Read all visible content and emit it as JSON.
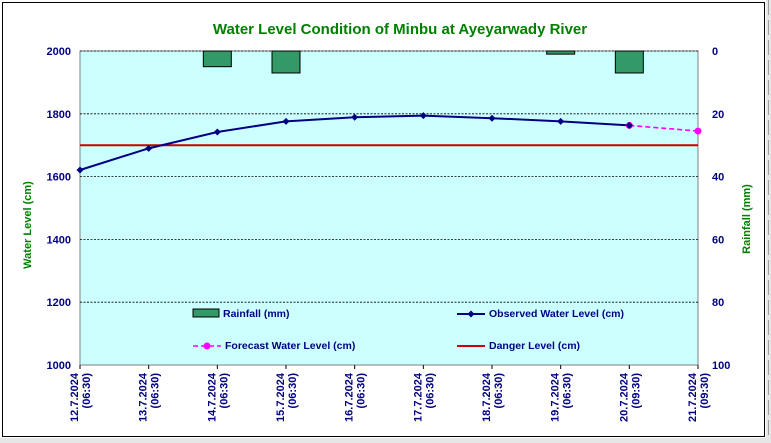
{
  "chart_data": {
    "type": "line",
    "title": "Water Level Condition of Minbu at Ayeyarwady River",
    "ylabel": "Water Level (cm)",
    "y2label": "Rainfall (mm)",
    "ylim": [
      1000,
      2000
    ],
    "yticks": [
      "1000",
      "1200",
      "1400",
      "1600",
      "1800",
      "2000"
    ],
    "y2lim": [
      0,
      100
    ],
    "y2_inverted": true,
    "y2ticks": [
      "0",
      "20",
      "40",
      "60",
      "80",
      "100"
    ],
    "grid": true,
    "categories": [
      [
        "12.7.2024",
        "(06:30)"
      ],
      [
        "13.7.2024",
        "(06:30)"
      ],
      [
        "14.7.2024",
        "(06:30)"
      ],
      [
        "15.7.2024",
        "(06:30)"
      ],
      [
        "16.7.2024",
        "(06:30)"
      ],
      [
        "17.7.2024",
        "(06:30)"
      ],
      [
        "18.7.2024",
        "(06:30)"
      ],
      [
        "19.7.2024",
        "(06:30)"
      ],
      [
        "20.7.2024",
        "(09:30)"
      ],
      [
        "21.7.2024",
        "(09:30)"
      ]
    ],
    "series": [
      {
        "name": "Rainfall (mm)",
        "type": "bar",
        "axis": "right",
        "color": "#339966",
        "values": [
          0,
          0,
          5,
          7,
          0,
          0,
          0,
          1,
          7,
          null
        ]
      },
      {
        "name": "Observed Water Level (cm)",
        "type": "line",
        "axis": "left",
        "color": "#000080",
        "marker": "diamond",
        "values": [
          1621,
          1690,
          1742,
          1776,
          1789,
          1794,
          1786,
          1776,
          1763,
          null
        ]
      },
      {
        "name": "Forecast Water Level (cm)",
        "type": "line",
        "axis": "left",
        "color": "#ff00ff",
        "style": "dashed",
        "marker": "circle",
        "values": [
          null,
          null,
          null,
          null,
          null,
          null,
          null,
          null,
          1763,
          1745
        ]
      },
      {
        "name": "Danger Level (cm)",
        "type": "line",
        "axis": "left",
        "color": "#cc0000",
        "values": [
          1700,
          1700,
          1700,
          1700,
          1700,
          1700,
          1700,
          1700,
          1700,
          1700
        ]
      }
    ],
    "legend": "inside-bottom",
    "colors": {
      "title": "#008000",
      "axis_labels": "#008000",
      "tick_labels": "#000080",
      "plot_background": "#ccffff",
      "legend_text": "#000080"
    }
  }
}
